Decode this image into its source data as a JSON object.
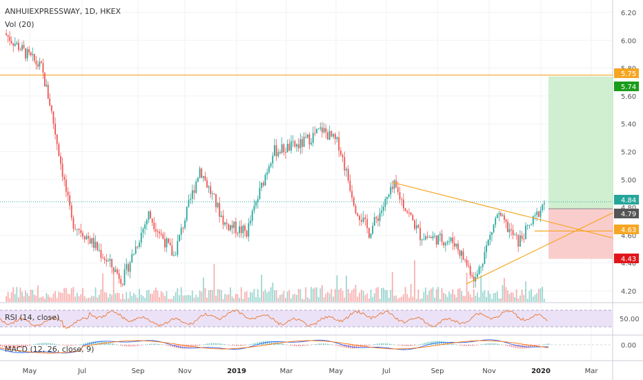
{
  "header": {
    "symbol_line": "ANHUIEXPRESSWAY, 1D, HKEX",
    "vol_label": "Vol (20)",
    "rsi_label": "RSI (14, close)",
    "macd_label": "MACD (12, 26, close, 9)"
  },
  "price_axis": {
    "ticks": [
      "6.20",
      "6.00",
      "5.80",
      "5.60",
      "5.40",
      "5.20",
      "5.00",
      "4.80",
      "4.60",
      "4.40",
      "4.20"
    ],
    "range": [
      4.13,
      6.23
    ]
  },
  "price_tags": [
    {
      "value": 5.75,
      "label": "5.75",
      "color": "#f5a623",
      "text_color": "#ffffff"
    },
    {
      "value": 5.74,
      "label": "5.74",
      "color": "#1a9c1a",
      "text_color": "#ffffff"
    },
    {
      "value": 4.84,
      "label": "4.84",
      "color": "#26a69a",
      "text_color": "#ffffff"
    },
    {
      "value": 4.79,
      "label": "4.79",
      "color": "#555555",
      "text_color": "#ffffff"
    },
    {
      "value": 4.63,
      "label": "4.63",
      "color": "#f5a623",
      "text_color": "#ffffff"
    },
    {
      "value": 4.43,
      "label": "4.43",
      "color": "#e0161b",
      "text_color": "#ffffff"
    }
  ],
  "rsi_axis": {
    "tick": "50.00"
  },
  "macd_axis": {
    "tick": "0.00"
  },
  "time_axis": [
    {
      "label": "May",
      "bold": false
    },
    {
      "label": "Jul",
      "bold": false
    },
    {
      "label": "Sep",
      "bold": false
    },
    {
      "label": "Nov",
      "bold": false
    },
    {
      "label": "2019",
      "bold": true
    },
    {
      "label": "Mar",
      "bold": false
    },
    {
      "label": "May",
      "bold": false
    },
    {
      "label": "Jul",
      "bold": false
    },
    {
      "label": "Sep",
      "bold": false
    },
    {
      "label": "Nov",
      "bold": false
    },
    {
      "label": "2020",
      "bold": true
    },
    {
      "label": "Mar",
      "bold": false
    }
  ],
  "colors": {
    "up": "#26a69a",
    "down": "#ef5350",
    "resistance_line": "#f5a623",
    "trendline": "#f5a623",
    "target_zone": "#c8ecc8",
    "stop_zone": "#f9c4c4",
    "rsi_band": "#ece2f7",
    "rsi_line": "#e8742f",
    "macd_line": "#2962ff",
    "signal_line": "#ff6d00",
    "current_price_line": "#26a69a"
  },
  "chart_data": {
    "type": "candlestick",
    "symbol": "ANHUIEXPRESSWAY",
    "interval": "1D",
    "exchange": "HKEX",
    "price_ylim": [
      4.13,
      6.23
    ],
    "close_path_approx": [
      {
        "date": "2018-04",
        "close": 6.05
      },
      {
        "date": "2018-05-15",
        "close": 5.8
      },
      {
        "date": "2018-05-25",
        "close": 5.55
      },
      {
        "date": "2018-06-20",
        "close": 4.7
      },
      {
        "date": "2018-07-10",
        "close": 4.58
      },
      {
        "date": "2018-08-20",
        "close": 4.28
      },
      {
        "date": "2018-09-20",
        "close": 4.75
      },
      {
        "date": "2018-10-20",
        "close": 4.45
      },
      {
        "date": "2018-11-20",
        "close": 5.08
      },
      {
        "date": "2018-12-20",
        "close": 4.68
      },
      {
        "date": "2019-01-15",
        "close": 4.62
      },
      {
        "date": "2019-02-15",
        "close": 5.2
      },
      {
        "date": "2019-03-20",
        "close": 5.25
      },
      {
        "date": "2019-04-15",
        "close": 5.36
      },
      {
        "date": "2019-05-05",
        "close": 5.25
      },
      {
        "date": "2019-05-25",
        "close": 4.8
      },
      {
        "date": "2019-06-10",
        "close": 4.62
      },
      {
        "date": "2019-07-10",
        "close": 4.95
      },
      {
        "date": "2019-08-10",
        "close": 4.6
      },
      {
        "date": "2019-09-20",
        "close": 4.55
      },
      {
        "date": "2019-10-15",
        "close": 4.28
      },
      {
        "date": "2019-11-10",
        "close": 4.75
      },
      {
        "date": "2019-12-05",
        "close": 4.55
      },
      {
        "date": "2019-12-25",
        "close": 4.72
      },
      {
        "date": "2020-01-05",
        "close": 4.84
      }
    ],
    "levels": {
      "resistance": 5.75,
      "target": 5.74,
      "last": 4.84,
      "entry": 4.79,
      "trend": 4.63,
      "stop": 4.43
    },
    "rsi": {
      "label": "RSI (14, close)",
      "mid": 50.0,
      "upper": 70,
      "lower": 30
    },
    "macd": {
      "label": "MACD (12, 26, close, 9)",
      "zero": 0.0
    }
  }
}
